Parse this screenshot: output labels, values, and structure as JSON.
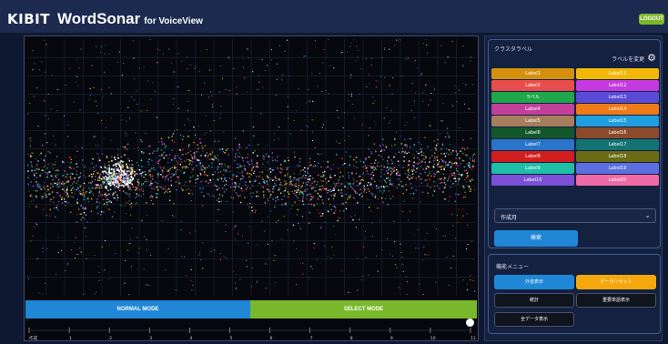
{
  "header": {
    "brand_kibit": "KIBIT",
    "brand_name": "WordSonar",
    "brand_for": "for VoiceView",
    "logout_label": "LOGOUT"
  },
  "plot": {
    "modes": [
      {
        "label": "NORMAL MODE",
        "color": "#1f87d6"
      },
      {
        "label": "SELECT MODE",
        "color": "#79b82a"
      }
    ],
    "timeline_labels": [
      "作成",
      "1",
      "2",
      "3",
      "4",
      "5",
      "6",
      "7",
      "8",
      "9",
      "10",
      "11"
    ]
  },
  "sidebar": {
    "cluster_title": "クラスタラベル",
    "label_change": "ラベルを変更",
    "labels": [
      {
        "text": "Label1",
        "color": "#d4900d"
      },
      {
        "text": "Label11",
        "color": "#f3b70a"
      },
      {
        "text": "Label2",
        "color": "#e84d4d"
      },
      {
        "text": "Label12",
        "color": "#c43ae0"
      },
      {
        "text": "ラベル",
        "color": "#1ea74b"
      },
      {
        "text": "Label13",
        "color": "#5a4bd6"
      },
      {
        "text": "Label4",
        "color": "#c43f9b"
      },
      {
        "text": "Label14",
        "color": "#f07a16"
      },
      {
        "text": "Label5",
        "color": "#a67d5d"
      },
      {
        "text": "Label15",
        "color": "#1f9ee0"
      },
      {
        "text": "Label6",
        "color": "#13582a"
      },
      {
        "text": "Label16",
        "color": "#8c4a2c"
      },
      {
        "text": "Label7",
        "color": "#2a74c9"
      },
      {
        "text": "Label17",
        "color": "#137272"
      },
      {
        "text": "Label8",
        "color": "#d11e1e"
      },
      {
        "text": "Label18",
        "color": "#6b6b15"
      },
      {
        "text": "Label9",
        "color": "#1fbfa6"
      },
      {
        "text": "Label19",
        "color": "#5b6fe0"
      },
      {
        "text": "Label10",
        "color": "#7b4fd6"
      },
      {
        "text": "Label20",
        "color": "#f06aa5"
      }
    ],
    "select_value": "作成月",
    "search_label": "検索",
    "menu_title": "機能メニュー",
    "menu_buttons": [
      {
        "text": "外音表示",
        "style": "blue"
      },
      {
        "text": "データリセット",
        "style": "orange"
      },
      {
        "text": "統計",
        "style": "dark"
      },
      {
        "text": "重要単語表示",
        "style": "dark"
      },
      {
        "text": "全データ表示",
        "style": "dark"
      }
    ]
  }
}
